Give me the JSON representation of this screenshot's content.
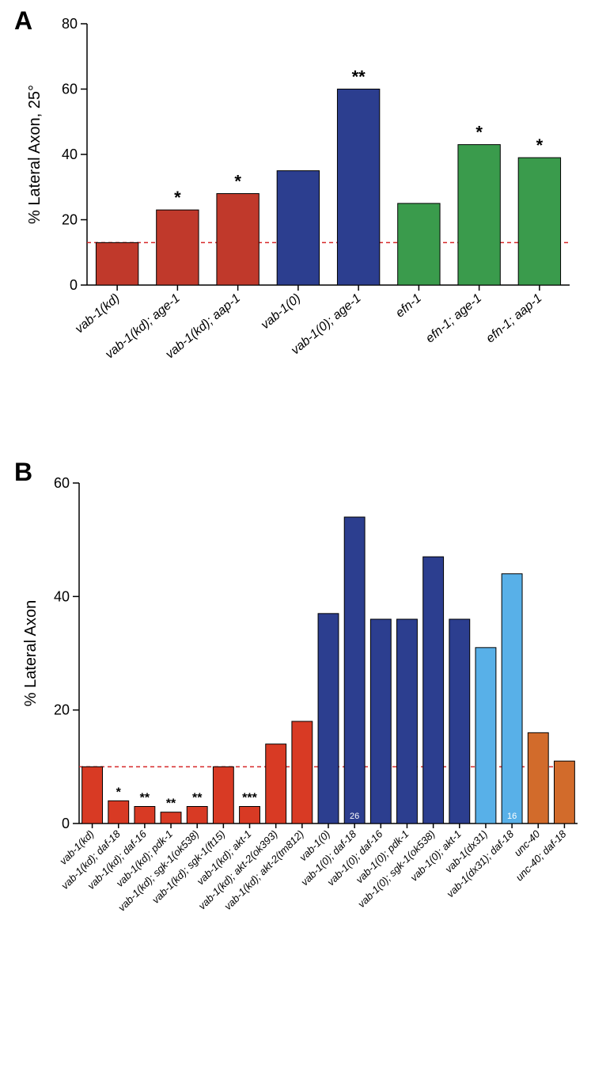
{
  "panelA": {
    "label": "A",
    "type": "bar",
    "y_title": "% Lateral Axon, 25°",
    "ylim": [
      0,
      80
    ],
    "ytick_step": 20,
    "baseline": 13,
    "baseline_color": "#d62728",
    "bar_stroke": "#000000",
    "background": "#ffffff",
    "items": [
      {
        "cat": "vab-1(kd)",
        "value": 13,
        "color": "#c0392b",
        "sig": ""
      },
      {
        "cat": "vab-1(kd); age-1",
        "value": 23,
        "color": "#c0392b",
        "sig": "*"
      },
      {
        "cat": "vab-1(kd); aap-1",
        "value": 28,
        "color": "#c0392b",
        "sig": "*"
      },
      {
        "cat": "vab-1(0)",
        "value": 35,
        "color": "#2c3e8f",
        "sig": ""
      },
      {
        "cat": "vab-1(0); age-1",
        "value": 60,
        "color": "#2c3e8f",
        "sig": "**"
      },
      {
        "cat": "efn-1",
        "value": 25,
        "color": "#3a9b4c",
        "sig": ""
      },
      {
        "cat": "efn-1; age-1",
        "value": 43,
        "color": "#3a9b4c",
        "sig": "*"
      },
      {
        "cat": "efn-1; aap-1",
        "value": 39,
        "color": "#3a9b4c",
        "sig": "*"
      }
    ]
  },
  "panelB": {
    "label": "B",
    "type": "bar",
    "y_title": "% Lateral Axon",
    "ylim": [
      0,
      60
    ],
    "ytick_step": 20,
    "baseline": 10,
    "baseline_color": "#d62728",
    "bar_stroke": "#000000",
    "background": "#ffffff",
    "items": [
      {
        "cat": "vab-1(kd)",
        "value": 10,
        "color": "#d83a24",
        "sig": ""
      },
      {
        "cat": "vab-1(kd); daf-18",
        "value": 4,
        "color": "#d83a24",
        "sig": "*"
      },
      {
        "cat": "vab-1(kd); daf-16",
        "value": 3,
        "color": "#d83a24",
        "sig": "**"
      },
      {
        "cat": "vab-1(kd); pdk-1",
        "value": 2,
        "color": "#d83a24",
        "sig": "**"
      },
      {
        "cat": "vab-1(kd); sgk-1(ok538)",
        "value": 3,
        "color": "#d83a24",
        "sig": "**"
      },
      {
        "cat": "vab-1(kd); sgk-1(ft15)",
        "value": 10,
        "color": "#d83a24",
        "sig": ""
      },
      {
        "cat": "vab-1(kd); akt-1",
        "value": 3,
        "color": "#d83a24",
        "sig": "***"
      },
      {
        "cat": "vab-1(kd); akt-2(ok393)",
        "value": 14,
        "color": "#d83a24",
        "sig": ""
      },
      {
        "cat": "vab-1(kd); akt-2(tm812)",
        "value": 18,
        "color": "#d83a24",
        "sig": ""
      },
      {
        "cat": "vab-1(0)",
        "value": 37,
        "color": "#2c3e8f",
        "sig": ""
      },
      {
        "cat": "vab-1(0); daf-18",
        "value": 54,
        "color": "#2c3e8f",
        "sig": "",
        "inner_number": "26"
      },
      {
        "cat": "vab-1(0); daf-16",
        "value": 36,
        "color": "#2c3e8f",
        "sig": ""
      },
      {
        "cat": "vab-1(0); pdk-1",
        "value": 36,
        "color": "#2c3e8f",
        "sig": ""
      },
      {
        "cat": "vab-1(0); sgk-1(ok538)",
        "value": 47,
        "color": "#2c3e8f",
        "sig": ""
      },
      {
        "cat": "vab-1(0); akt-1",
        "value": 36,
        "color": "#2c3e8f",
        "sig": ""
      },
      {
        "cat": "vab-1(dx31)",
        "value": 31,
        "color": "#58b0e8",
        "sig": ""
      },
      {
        "cat": "vab-1(dx31); daf-18",
        "value": 44,
        "color": "#58b0e8",
        "sig": "",
        "inner_number": "16"
      },
      {
        "cat": "unc-40",
        "value": 16,
        "color": "#d26b2b",
        "sig": ""
      },
      {
        "cat": "unc-40; daf-18",
        "value": 11,
        "color": "#d26b2b",
        "sig": ""
      }
    ]
  }
}
